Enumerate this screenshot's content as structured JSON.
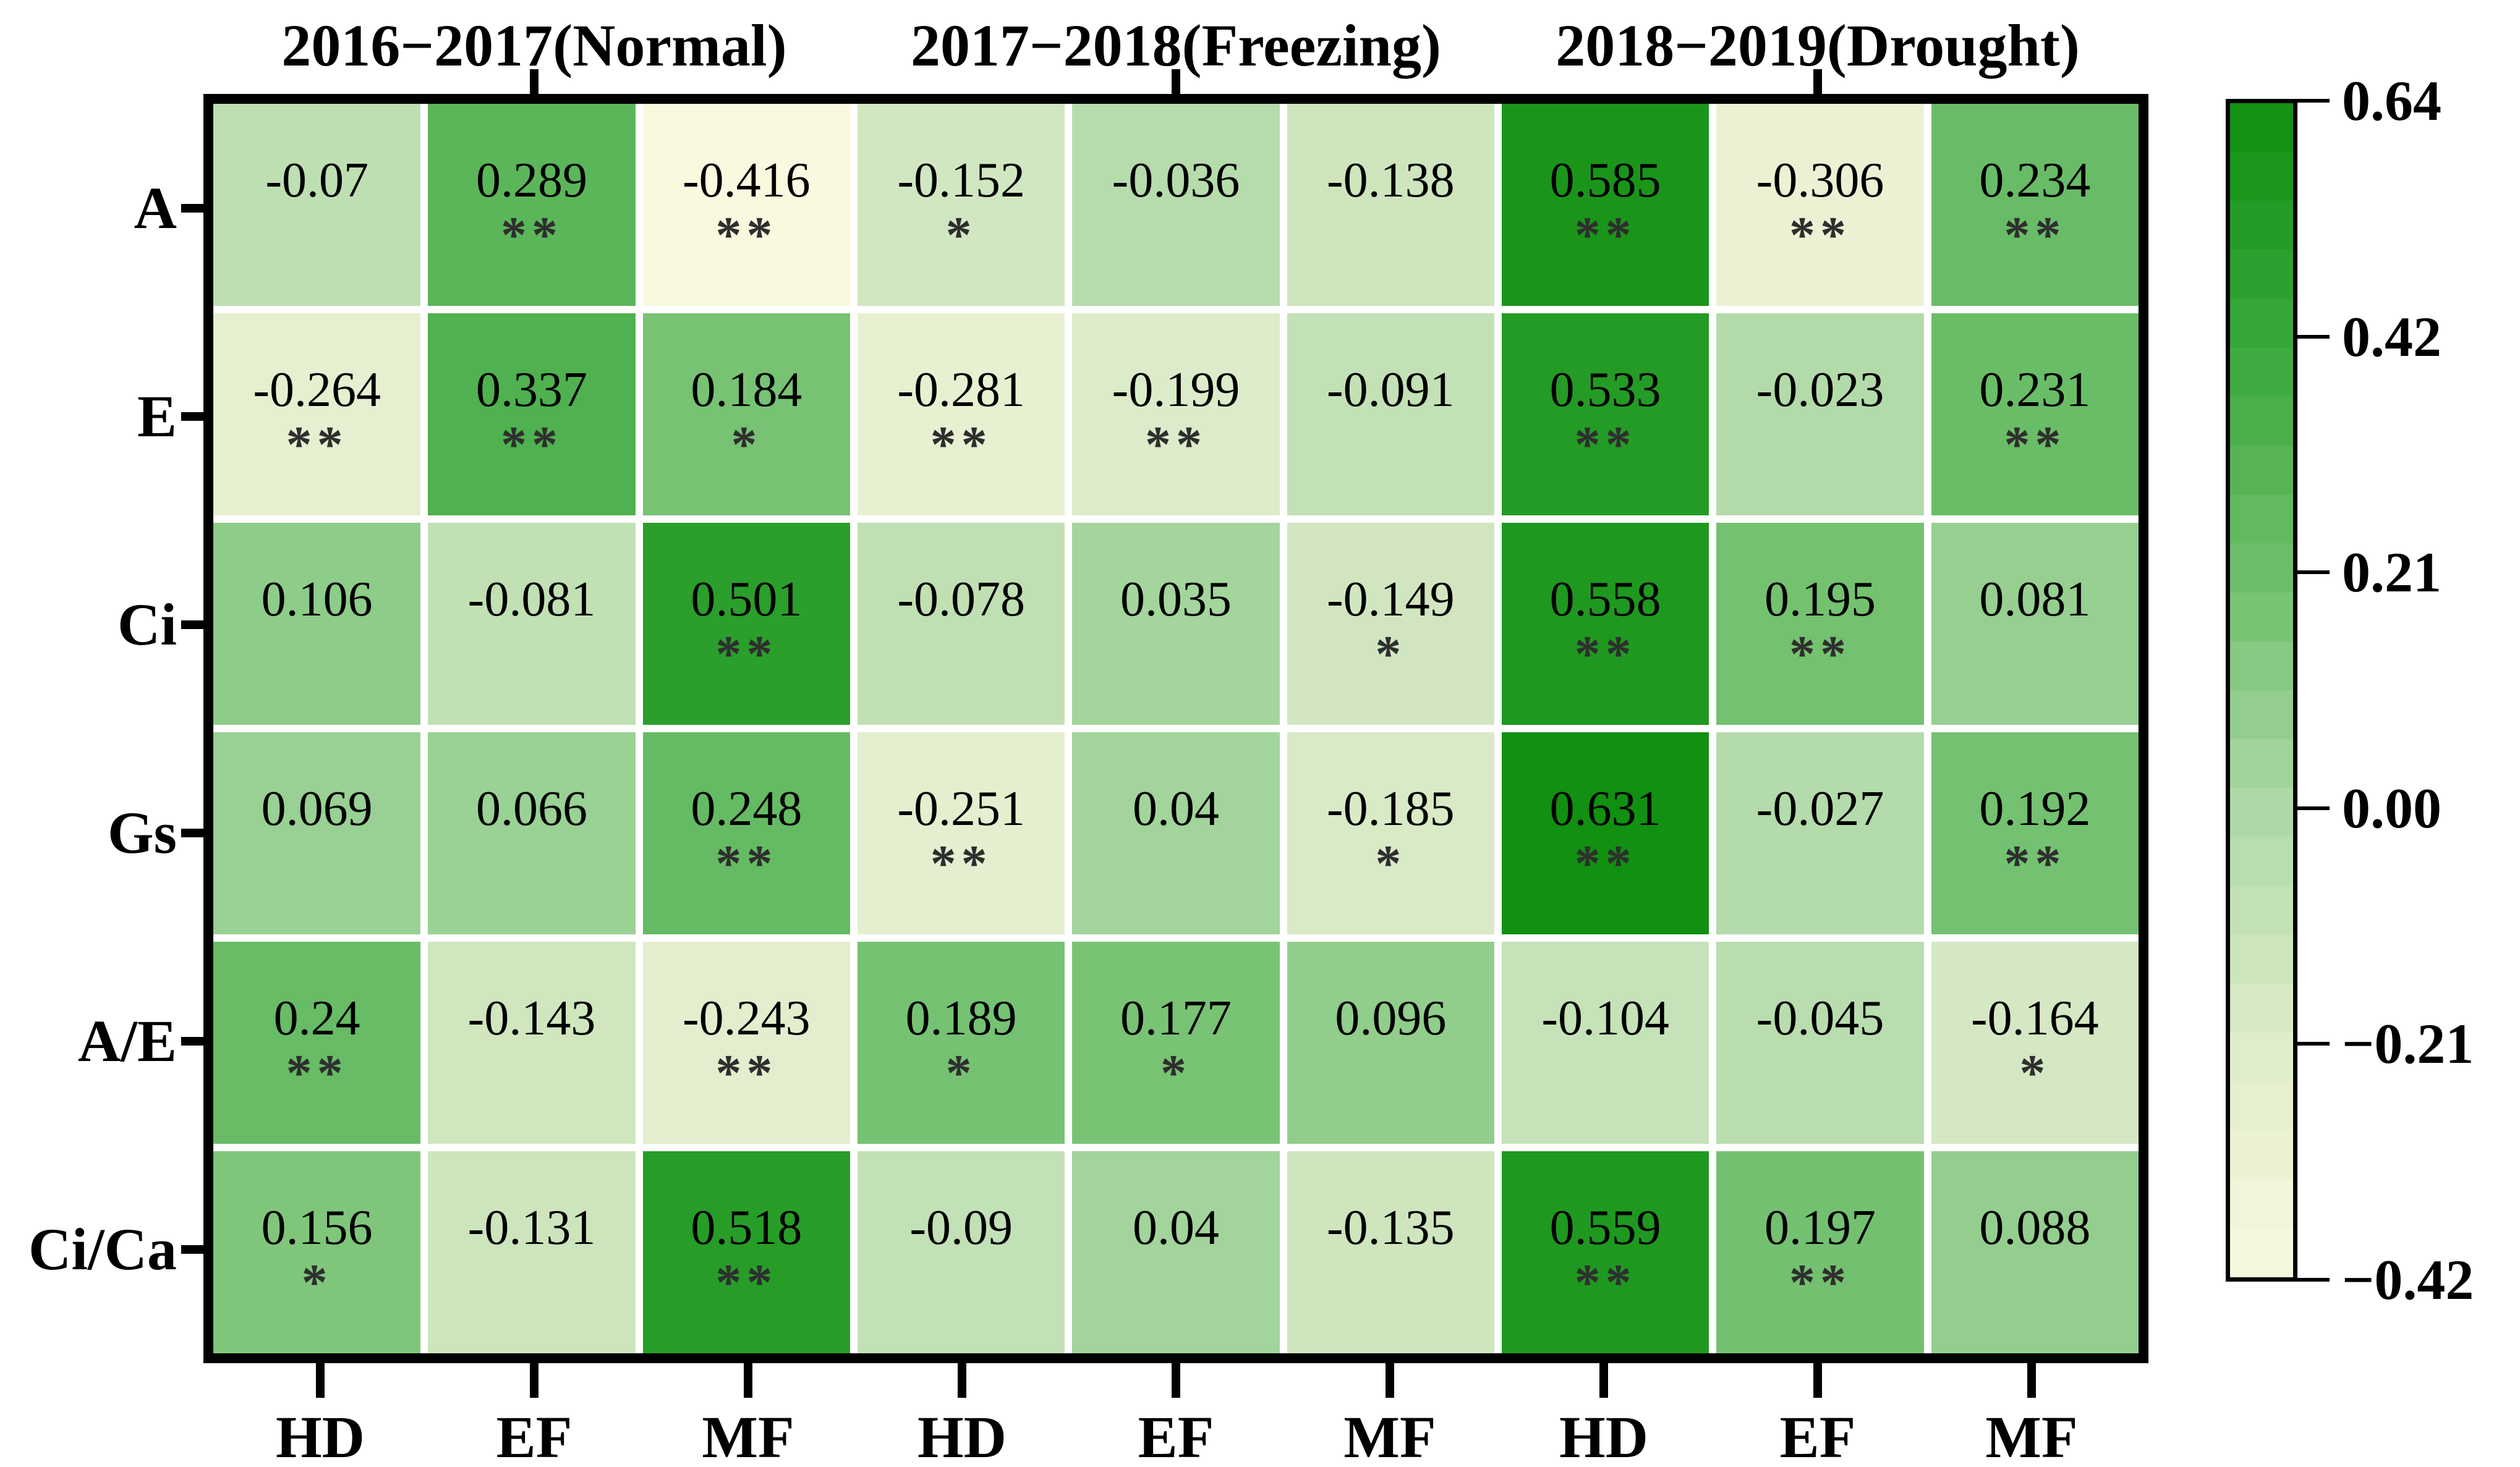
{
  "chart_data": {
    "type": "heatmap",
    "title": "",
    "group_labels": [
      "2016−2017(Normal)",
      "2017−2018(Freezing)",
      "2018−2019(Drought)"
    ],
    "x_labels": [
      "HD",
      "EF",
      "MF",
      "HD",
      "EF",
      "MF",
      "HD",
      "EF",
      "MF"
    ],
    "y_labels": [
      "A",
      "E",
      "Ci",
      "Gs",
      "A/E",
      "Ci/Ca"
    ],
    "cells": [
      [
        {
          "v": -0.07,
          "d": "-0.07",
          "s": ""
        },
        {
          "v": 0.289,
          "d": "0.289",
          "s": "**"
        },
        {
          "v": -0.416,
          "d": "-0.416",
          "s": "**"
        },
        {
          "v": -0.152,
          "d": "-0.152",
          "s": "*"
        },
        {
          "v": -0.036,
          "d": "-0.036",
          "s": ""
        },
        {
          "v": -0.138,
          "d": "-0.138",
          "s": ""
        },
        {
          "v": 0.585,
          "d": "0.585",
          "s": "**"
        },
        {
          "v": -0.306,
          "d": "-0.306",
          "s": "**"
        },
        {
          "v": 0.234,
          "d": "0.234",
          "s": "**"
        }
      ],
      [
        {
          "v": -0.264,
          "d": "-0.264",
          "s": "**"
        },
        {
          "v": 0.337,
          "d": "0.337",
          "s": "**"
        },
        {
          "v": 0.184,
          "d": "0.184",
          "s": "*"
        },
        {
          "v": -0.281,
          "d": "-0.281",
          "s": "**"
        },
        {
          "v": -0.199,
          "d": "-0.199",
          "s": "**"
        },
        {
          "v": -0.091,
          "d": "-0.091",
          "s": ""
        },
        {
          "v": 0.533,
          "d": "0.533",
          "s": "**"
        },
        {
          "v": -0.023,
          "d": "-0.023",
          "s": ""
        },
        {
          "v": 0.231,
          "d": "0.231",
          "s": "**"
        }
      ],
      [
        {
          "v": 0.106,
          "d": "0.106",
          "s": ""
        },
        {
          "v": -0.081,
          "d": "-0.081",
          "s": ""
        },
        {
          "v": 0.501,
          "d": "0.501",
          "s": "**"
        },
        {
          "v": -0.078,
          "d": "-0.078",
          "s": ""
        },
        {
          "v": 0.035,
          "d": "0.035",
          "s": ""
        },
        {
          "v": -0.149,
          "d": "-0.149",
          "s": "*"
        },
        {
          "v": 0.558,
          "d": "0.558",
          "s": "**"
        },
        {
          "v": 0.195,
          "d": "0.195",
          "s": "**"
        },
        {
          "v": 0.081,
          "d": "0.081",
          "s": ""
        }
      ],
      [
        {
          "v": 0.069,
          "d": "0.069",
          "s": ""
        },
        {
          "v": 0.066,
          "d": "0.066",
          "s": ""
        },
        {
          "v": 0.248,
          "d": "0.248",
          "s": "**"
        },
        {
          "v": -0.251,
          "d": "-0.251",
          "s": "**"
        },
        {
          "v": 0.04,
          "d": "0.04",
          "s": ""
        },
        {
          "v": -0.185,
          "d": "-0.185",
          "s": "*"
        },
        {
          "v": 0.631,
          "d": "0.631",
          "s": "**"
        },
        {
          "v": -0.027,
          "d": "-0.027",
          "s": ""
        },
        {
          "v": 0.192,
          "d": "0.192",
          "s": "**"
        }
      ],
      [
        {
          "v": 0.24,
          "d": "0.24",
          "s": "**"
        },
        {
          "v": -0.143,
          "d": "-0.143",
          "s": ""
        },
        {
          "v": -0.243,
          "d": "-0.243",
          "s": "**"
        },
        {
          "v": 0.189,
          "d": "0.189",
          "s": "*"
        },
        {
          "v": 0.177,
          "d": "0.177",
          "s": "*"
        },
        {
          "v": 0.096,
          "d": "0.096",
          "s": ""
        },
        {
          "v": -0.104,
          "d": "-0.104",
          "s": ""
        },
        {
          "v": -0.045,
          "d": "-0.045",
          "s": ""
        },
        {
          "v": -0.164,
          "d": "-0.164",
          "s": "*"
        }
      ],
      [
        {
          "v": 0.156,
          "d": "0.156",
          "s": "*"
        },
        {
          "v": -0.131,
          "d": "-0.131",
          "s": ""
        },
        {
          "v": 0.518,
          "d": "0.518",
          "s": "**"
        },
        {
          "v": -0.09,
          "d": "-0.09",
          "s": ""
        },
        {
          "v": 0.04,
          "d": "0.04",
          "s": ""
        },
        {
          "v": -0.135,
          "d": "-0.135",
          "s": ""
        },
        {
          "v": 0.559,
          "d": "0.559",
          "s": "**"
        },
        {
          "v": 0.197,
          "d": "0.197",
          "s": "**"
        },
        {
          "v": 0.088,
          "d": "0.088",
          "s": ""
        }
      ]
    ],
    "colorbar": {
      "min": -0.42,
      "max": 0.64,
      "tick_labels": [
        "0.64",
        "0.42",
        "0.21",
        "0.00",
        "−0.21",
        "−0.42"
      ],
      "steps": 24,
      "stops": [
        {
          "v": -0.42,
          "c": "#f9f9df"
        },
        {
          "v": -0.21,
          "c": "#dfeccb"
        },
        {
          "v": 0.0,
          "c": "#aed9a6"
        },
        {
          "v": 0.21,
          "c": "#6fbf6c"
        },
        {
          "v": 0.42,
          "c": "#3aa83c"
        },
        {
          "v": 0.64,
          "c": "#0f8f0f"
        }
      ]
    },
    "layout": {
      "grid_on": false,
      "legend_position": "right-colorbar",
      "significance_note_style": "stars-below-value"
    }
  }
}
